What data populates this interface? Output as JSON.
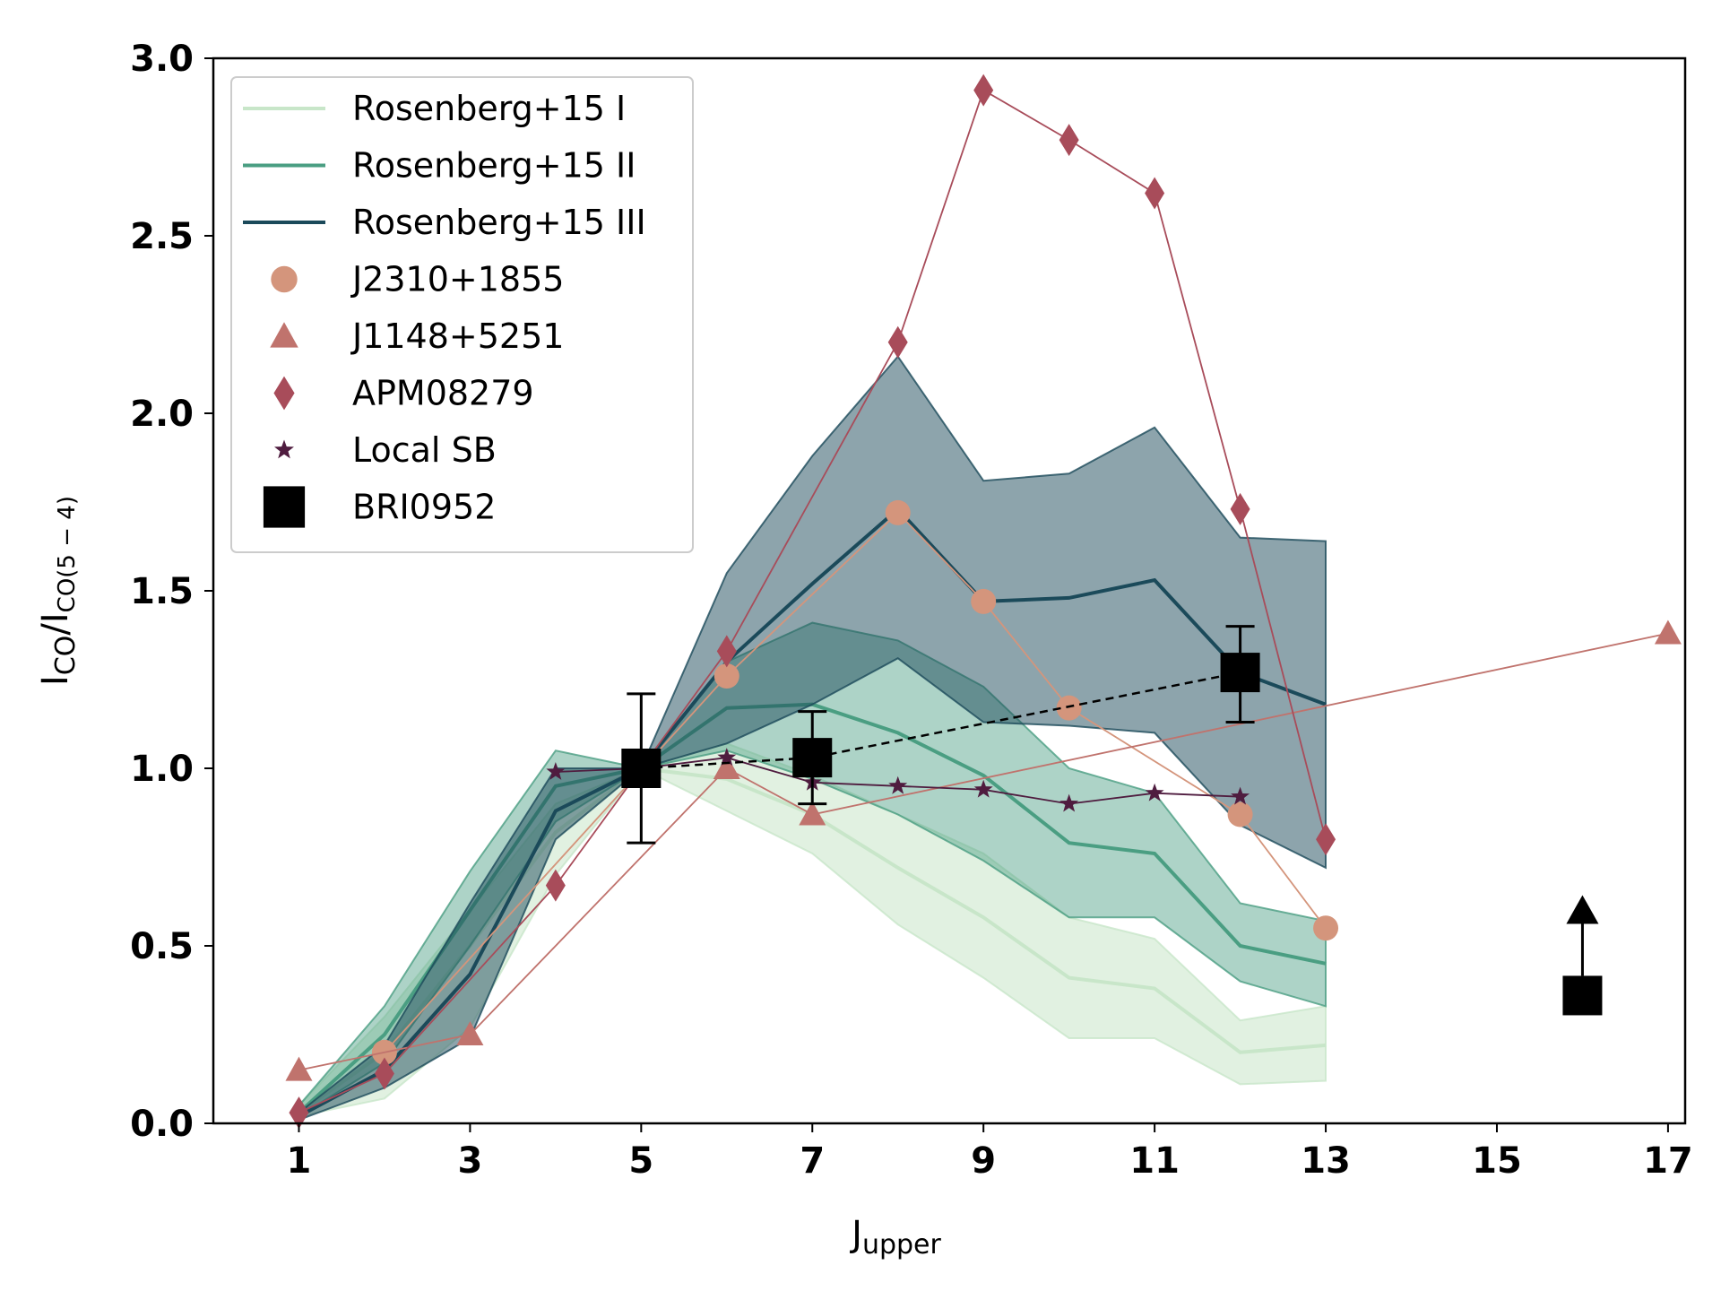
{
  "chart_data": {
    "type": "line",
    "xlabel": {
      "main": "J",
      "sub": "upper"
    },
    "ylabel": {
      "main1": "I",
      "sub1": "CO",
      "main2": "/I",
      "sub2": "CO(5 − 4)"
    },
    "xlim": [
      0,
      17.2
    ],
    "ylim": [
      0,
      3.0
    ],
    "xticks": [
      1,
      3,
      5,
      7,
      9,
      11,
      13,
      15,
      17
    ],
    "xtick_labels": [
      "1",
      "3",
      "5",
      "7",
      "9",
      "11",
      "13",
      "15",
      "17"
    ],
    "yticks": [
      0,
      0.5,
      1.0,
      1.5,
      2.0,
      2.5,
      3.0
    ],
    "ytick_labels": [
      "0.0",
      "0.5",
      "1.0",
      "1.5",
      "2.0",
      "2.5",
      "3.0"
    ],
    "legend_position": "top-left",
    "bands": [
      {
        "name": "Rosenberg+15 I",
        "color": "#c8e6c9",
        "fill_opacity": 0.55,
        "x": [
          1,
          2,
          3,
          4,
          5,
          6,
          7,
          8,
          9,
          10,
          11,
          12,
          13
        ],
        "mean": [
          0.03,
          0.2,
          0.5,
          0.82,
          1.0,
          0.97,
          0.87,
          0.72,
          0.58,
          0.41,
          0.38,
          0.2,
          0.22
        ],
        "lower": [
          0.02,
          0.07,
          0.27,
          0.7,
          1.0,
          0.88,
          0.76,
          0.56,
          0.41,
          0.24,
          0.24,
          0.11,
          0.12
        ],
        "upper": [
          0.05,
          0.3,
          0.6,
          0.9,
          1.0,
          1.07,
          0.98,
          0.87,
          0.76,
          0.58,
          0.52,
          0.29,
          0.33
        ]
      },
      {
        "name": "Rosenberg+15 II",
        "color": "#4a9e82",
        "fill_opacity": 0.45,
        "x": [
          1,
          2,
          3,
          4,
          5,
          6,
          7,
          8,
          9,
          10,
          11,
          12,
          13
        ],
        "mean": [
          0.03,
          0.25,
          0.6,
          0.95,
          1.0,
          1.17,
          1.18,
          1.1,
          0.98,
          0.79,
          0.76,
          0.5,
          0.45
        ],
        "lower": [
          0.02,
          0.17,
          0.5,
          0.85,
          1.0,
          1.05,
          0.97,
          0.87,
          0.74,
          0.58,
          0.58,
          0.4,
          0.33
        ],
        "upper": [
          0.05,
          0.33,
          0.71,
          1.05,
          1.0,
          1.3,
          1.41,
          1.36,
          1.23,
          1.0,
          0.93,
          0.62,
          0.57
        ]
      },
      {
        "name": "Rosenberg+15 III",
        "color": "#1b4a5a",
        "fill_opacity": 0.5,
        "x": [
          1,
          2,
          3,
          4,
          5,
          6,
          7,
          8,
          9,
          10,
          11,
          12,
          13
        ],
        "mean": [
          0.02,
          0.15,
          0.42,
          0.88,
          1.0,
          1.3,
          1.52,
          1.73,
          1.47,
          1.48,
          1.53,
          1.27,
          1.18
        ],
        "lower": [
          0.01,
          0.1,
          0.24,
          0.8,
          1.0,
          1.07,
          1.18,
          1.31,
          1.13,
          1.12,
          1.1,
          0.84,
          0.72
        ],
        "upper": [
          0.03,
          0.22,
          0.62,
          1.0,
          1.0,
          1.55,
          1.88,
          2.16,
          1.81,
          1.83,
          1.96,
          1.65,
          1.64
        ]
      }
    ],
    "series": [
      {
        "name": "J2310+1855",
        "marker": "circle",
        "color": "#d4957c",
        "x": [
          2,
          6,
          8,
          9,
          10,
          12,
          13
        ],
        "y": [
          0.2,
          1.26,
          1.72,
          1.47,
          1.17,
          0.87,
          0.55
        ]
      },
      {
        "name": "J1148+5251",
        "marker": "triangle",
        "color": "#c0736d",
        "x": [
          1,
          3,
          6,
          7,
          17
        ],
        "y": [
          0.15,
          0.25,
          1.0,
          0.87,
          1.38
        ]
      },
      {
        "name": "APM08279",
        "marker": "diamond",
        "color": "#a84c5a",
        "x": [
          1,
          2,
          4,
          6,
          8,
          9,
          10,
          11,
          12,
          13
        ],
        "y": [
          0.03,
          0.14,
          0.67,
          1.33,
          2.2,
          2.91,
          2.77,
          2.62,
          1.73,
          0.8
        ]
      },
      {
        "name": "Local SB",
        "marker": "star",
        "color": "#4f1c3f",
        "x": [
          4,
          5,
          6,
          7,
          8,
          9,
          10,
          11,
          12
        ],
        "y": [
          0.99,
          1.0,
          1.03,
          0.96,
          0.95,
          0.94,
          0.9,
          0.93,
          0.92
        ]
      },
      {
        "name": "BRI0952",
        "marker": "square",
        "color": "#000000",
        "x": [
          5,
          7,
          12
        ],
        "y": [
          1.0,
          1.03,
          1.27
        ],
        "yerr_lower": [
          0.21,
          0.13,
          0.14
        ],
        "yerr_upper": [
          0.21,
          0.13,
          0.13
        ],
        "connector": "dashed",
        "lower_limit": {
          "x": 16,
          "y": 0.36
        }
      }
    ],
    "legend": [
      "Rosenberg+15 I",
      "Rosenberg+15 II",
      "Rosenberg+15 III",
      "J2310+1855",
      "J1148+5251",
      "APM08279",
      "Local SB",
      "BRI0952"
    ]
  }
}
